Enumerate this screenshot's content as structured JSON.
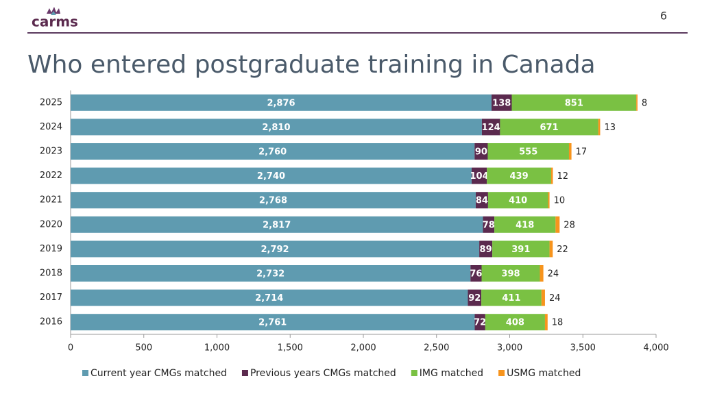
{
  "header": {
    "logo": "carms",
    "page_number": "6"
  },
  "chart_data": {
    "type": "stacked_bar",
    "orientation": "horizontal",
    "title": "Who entered postgraduate training in Canada",
    "categories": [
      "2025",
      "2024",
      "2023",
      "2022",
      "2021",
      "2020",
      "2019",
      "2018",
      "2017",
      "2016"
    ],
    "series": [
      {
        "name": "Current year CMGs matched",
        "color": "#5f9bb0",
        "values": [
          2876,
          2810,
          2760,
          2740,
          2768,
          2817,
          2792,
          2732,
          2714,
          2761
        ],
        "value_labels": [
          "2,876",
          "2,810",
          "2,760",
          "2,740",
          "2,768",
          "2,817",
          "2,792",
          "2,732",
          "2,714",
          "2,761"
        ]
      },
      {
        "name": "Previous years CMGs matched",
        "color": "#5b2a4e",
        "values": [
          138,
          124,
          90,
          104,
          84,
          78,
          89,
          76,
          92,
          72
        ]
      },
      {
        "name": "IMG matched",
        "color": "#7ac143",
        "values": [
          851,
          671,
          555,
          439,
          410,
          418,
          391,
          398,
          411,
          408
        ]
      },
      {
        "name": "USMG matched",
        "color": "#f7941d",
        "values": [
          8,
          13,
          17,
          12,
          10,
          28,
          22,
          24,
          24,
          18
        ]
      }
    ],
    "xlim": [
      0,
      4000
    ],
    "xticks": [
      0,
      500,
      {
        "value": 1000,
        "label": "1,000"
      },
      {
        "value": 1500,
        "label": "1,500"
      },
      {
        "value": 2000,
        "label": "2,000"
      },
      {
        "value": 2500,
        "label": "2,500"
      },
      {
        "value": 3000,
        "label": "3,000"
      },
      {
        "value": 3500,
        "label": "3,500"
      },
      {
        "value": 4000,
        "label": "4,000"
      }
    ],
    "grid": false,
    "legend": "bottom"
  }
}
